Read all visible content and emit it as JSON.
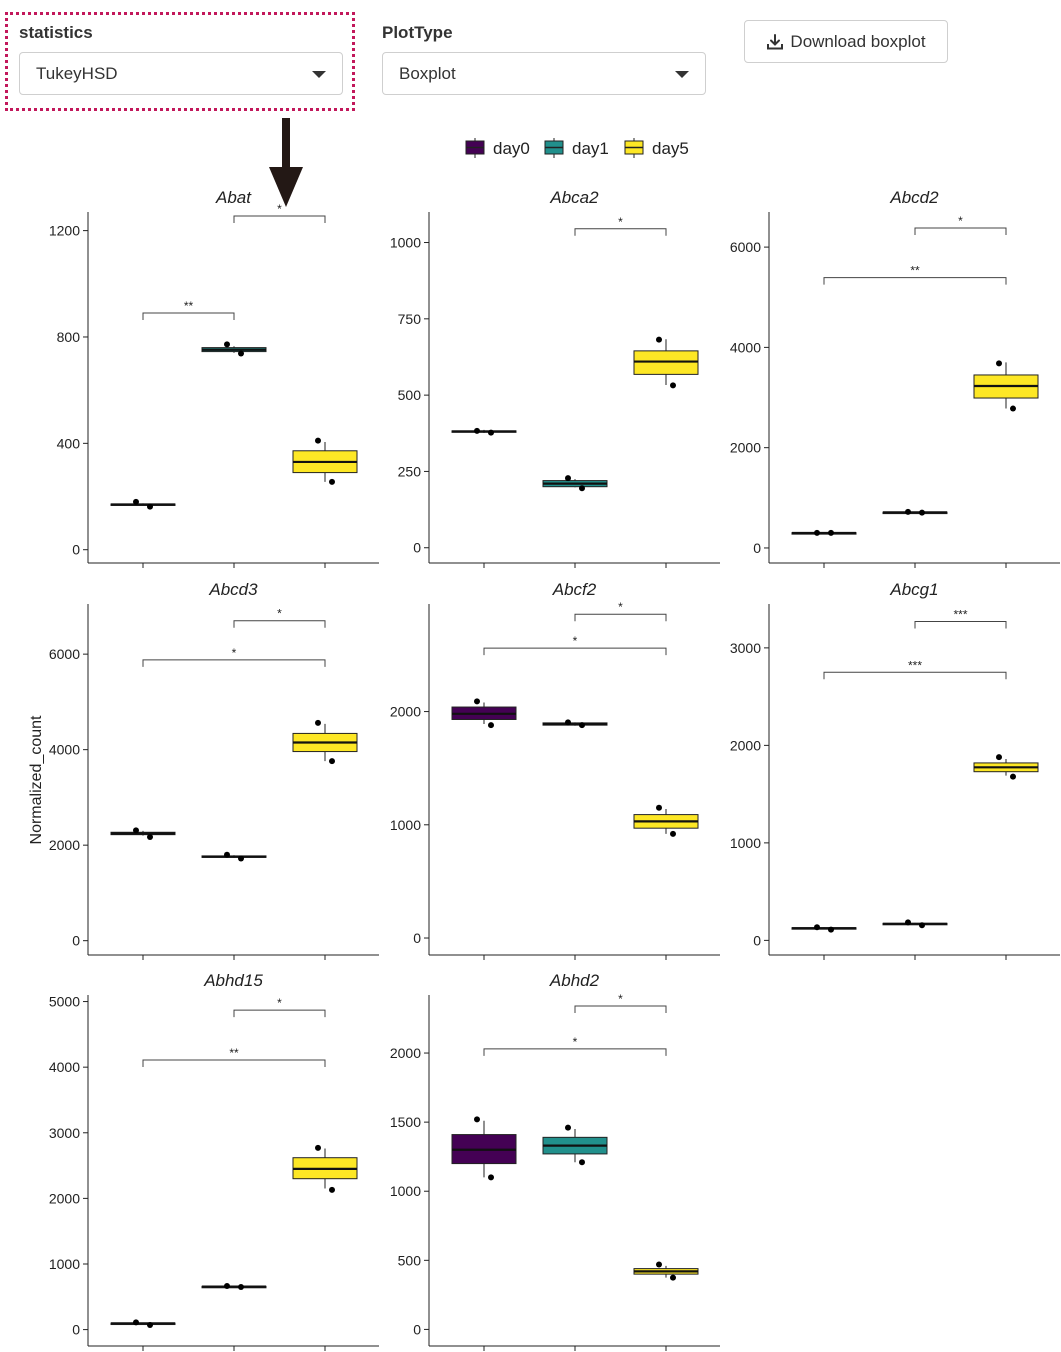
{
  "controls": {
    "statistics_label": "statistics",
    "statistics_value": "TukeyHSD",
    "plottype_label": "PlotType",
    "plottype_value": "Boxplot",
    "download_label": "Download boxplot"
  },
  "chart_data": {
    "type": "boxplot",
    "ylabel": "Normalized_count",
    "legend": [
      {
        "name": "day0",
        "color": "#440154"
      },
      {
        "name": "day1",
        "color": "#21908C"
      },
      {
        "name": "day5",
        "color": "#FDE725"
      }
    ],
    "panels": [
      {
        "title": "Abat",
        "ylim": [
          -50,
          1270
        ],
        "yticks": [
          0,
          400,
          800,
          1200
        ],
        "boxes": [
          {
            "group": "day0",
            "q1": 168,
            "median": 170,
            "q3": 172,
            "min": 166,
            "max": 174,
            "points": [
              180,
              162
            ]
          },
          {
            "group": "day1",
            "q1": 745,
            "median": 752,
            "q3": 760,
            "min": 740,
            "max": 765,
            "points": [
              772,
              738
            ]
          },
          {
            "group": "day5",
            "q1": 290,
            "median": 330,
            "q3": 372,
            "min": 255,
            "max": 405,
            "points": [
              410,
              255
            ]
          }
        ],
        "sig": [
          {
            "from": 1,
            "to": 2,
            "label": "*",
            "y": 1255
          },
          {
            "from": 0,
            "to": 1,
            "label": "**",
            "y": 890
          }
        ]
      },
      {
        "title": "Abca2",
        "ylim": [
          -50,
          1100
        ],
        "yticks": [
          0,
          250,
          500,
          750,
          1000
        ],
        "boxes": [
          {
            "group": "day0",
            "q1": 379,
            "median": 381,
            "q3": 383,
            "min": 376,
            "max": 386,
            "points": [
              383,
              377
            ]
          },
          {
            "group": "day1",
            "q1": 200,
            "median": 210,
            "q3": 220,
            "min": 198,
            "max": 225,
            "points": [
              228,
              195
            ]
          },
          {
            "group": "day5",
            "q1": 568,
            "median": 610,
            "q3": 645,
            "min": 533,
            "max": 683,
            "points": [
              682,
              532
            ]
          }
        ],
        "sig": [
          {
            "from": 1,
            "to": 2,
            "label": "*",
            "y": 1045
          }
        ]
      },
      {
        "title": "Abcd2",
        "ylim": [
          -300,
          6700
        ],
        "yticks": [
          0,
          2000,
          4000,
          6000
        ],
        "boxes": [
          {
            "group": "day0",
            "q1": 295,
            "median": 300,
            "q3": 305,
            "min": 290,
            "max": 310,
            "points": [
              300,
              300
            ]
          },
          {
            "group": "day1",
            "q1": 705,
            "median": 710,
            "q3": 715,
            "min": 700,
            "max": 720,
            "points": [
              720,
              705
            ]
          },
          {
            "group": "day5",
            "q1": 2990,
            "median": 3230,
            "q3": 3450,
            "min": 2780,
            "max": 3700,
            "points": [
              3680,
              2780
            ]
          }
        ],
        "sig": [
          {
            "from": 1,
            "to": 2,
            "label": "*",
            "y": 6380
          },
          {
            "from": 0,
            "to": 2,
            "label": "**",
            "y": 5390
          }
        ]
      },
      {
        "title": "Abcd3",
        "ylim": [
          -300,
          7050
        ],
        "yticks": [
          0,
          2000,
          4000,
          6000
        ],
        "boxes": [
          {
            "group": "day0",
            "q1": 2220,
            "median": 2245,
            "q3": 2270,
            "min": 2200,
            "max": 2300,
            "points": [
              2310,
              2170
            ]
          },
          {
            "group": "day1",
            "q1": 1745,
            "median": 1760,
            "q3": 1775,
            "min": 1735,
            "max": 1790,
            "points": [
              1800,
              1720
            ]
          },
          {
            "group": "day5",
            "q1": 3960,
            "median": 4150,
            "q3": 4340,
            "min": 3760,
            "max": 4540,
            "points": [
              4560,
              3760
            ]
          }
        ],
        "sig": [
          {
            "from": 1,
            "to": 2,
            "label": "*",
            "y": 6700
          },
          {
            "from": 0,
            "to": 2,
            "label": "*",
            "y": 5880
          }
        ]
      },
      {
        "title": "Abcf2",
        "ylim": [
          -150,
          2950
        ],
        "yticks": [
          0,
          1000,
          2000
        ],
        "boxes": [
          {
            "group": "day0",
            "q1": 1930,
            "median": 1980,
            "q3": 2040,
            "min": 1890,
            "max": 2080,
            "points": [
              2090,
              1880
            ]
          },
          {
            "group": "day1",
            "q1": 1880,
            "median": 1890,
            "q3": 1900,
            "min": 1875,
            "max": 1905,
            "points": [
              1905,
              1880
            ]
          },
          {
            "group": "day5",
            "q1": 970,
            "median": 1030,
            "q3": 1090,
            "min": 920,
            "max": 1140,
            "points": [
              1150,
              920
            ]
          }
        ],
        "sig": [
          {
            "from": 1,
            "to": 2,
            "label": "*",
            "y": 2860
          },
          {
            "from": 0,
            "to": 2,
            "label": "*",
            "y": 2560
          }
        ]
      },
      {
        "title": "Abcg1",
        "ylim": [
          -150,
          3450
        ],
        "yticks": [
          0,
          1000,
          2000,
          3000
        ],
        "boxes": [
          {
            "group": "day0",
            "q1": 120,
            "median": 125,
            "q3": 130,
            "min": 115,
            "max": 135,
            "points": [
              135,
              110
            ]
          },
          {
            "group": "day1",
            "q1": 165,
            "median": 170,
            "q3": 175,
            "min": 160,
            "max": 180,
            "points": [
              185,
              155
            ]
          },
          {
            "group": "day5",
            "q1": 1730,
            "median": 1775,
            "q3": 1820,
            "min": 1690,
            "max": 1860,
            "points": [
              1880,
              1680
            ]
          }
        ],
        "sig": [
          {
            "from": 1,
            "to": 2,
            "label": "***",
            "y": 3270
          },
          {
            "from": 0,
            "to": 2,
            "label": "***",
            "y": 2750
          }
        ]
      },
      {
        "title": "Abhd15",
        "ylim": [
          -250,
          5100
        ],
        "yticks": [
          0,
          1000,
          2000,
          3000,
          4000,
          5000
        ],
        "boxes": [
          {
            "group": "day0",
            "q1": 90,
            "median": 95,
            "q3": 100,
            "min": 85,
            "max": 105,
            "points": [
              110,
              70
            ]
          },
          {
            "group": "day1",
            "q1": 650,
            "median": 655,
            "q3": 660,
            "min": 645,
            "max": 665,
            "points": [
              665,
              650
            ]
          },
          {
            "group": "day5",
            "q1": 2300,
            "median": 2450,
            "q3": 2620,
            "min": 2150,
            "max": 2760,
            "points": [
              2770,
              2130
            ]
          }
        ],
        "sig": [
          {
            "from": 1,
            "to": 2,
            "label": "*",
            "y": 4870
          },
          {
            "from": 0,
            "to": 2,
            "label": "**",
            "y": 4110
          }
        ]
      },
      {
        "title": "Abhd2",
        "ylim": [
          -120,
          2420
        ],
        "yticks": [
          0,
          500,
          1000,
          1500,
          2000
        ],
        "boxes": [
          {
            "group": "day0",
            "q1": 1200,
            "median": 1300,
            "q3": 1410,
            "min": 1100,
            "max": 1510,
            "points": [
              1520,
              1100
            ]
          },
          {
            "group": "day1",
            "q1": 1270,
            "median": 1330,
            "q3": 1390,
            "min": 1210,
            "max": 1450,
            "points": [
              1460,
              1210
            ]
          },
          {
            "group": "day5",
            "q1": 400,
            "median": 420,
            "q3": 440,
            "min": 375,
            "max": 460,
            "points": [
              470,
              375
            ]
          }
        ],
        "sig": [
          {
            "from": 1,
            "to": 2,
            "label": "*",
            "y": 2340
          },
          {
            "from": 0,
            "to": 2,
            "label": "*",
            "y": 2030
          }
        ]
      }
    ]
  }
}
